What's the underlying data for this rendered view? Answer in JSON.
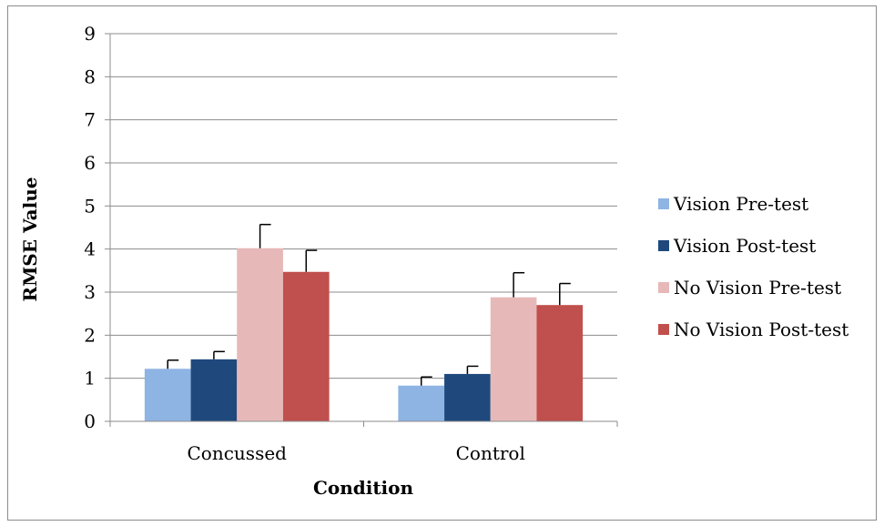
{
  "chart_data": {
    "type": "bar",
    "title": "",
    "xlabel": "Condition",
    "ylabel": "RMSE Value",
    "ylim": [
      0,
      9
    ],
    "yticks": [
      "0",
      "1",
      "2",
      "3",
      "4",
      "5",
      "6",
      "7",
      "8",
      "9"
    ],
    "categories": [
      "Concussed",
      "Control"
    ],
    "grid": true,
    "legend_position": "right",
    "series": [
      {
        "name": "Vision Pre-test",
        "color": "#8eb4e3",
        "values": [
          1.22,
          0.83
        ],
        "errors": [
          0.2,
          0.2
        ]
      },
      {
        "name": "Vision Post-test",
        "color": "#1f497d",
        "values": [
          1.44,
          1.1
        ],
        "errors": [
          0.18,
          0.18
        ]
      },
      {
        "name": "No Vision Pre-test",
        "color": "#e6b9b8",
        "values": [
          4.02,
          2.88
        ],
        "errors": [
          0.55,
          0.57
        ]
      },
      {
        "name": "No Vision Post-test",
        "color": "#c0504d",
        "values": [
          3.47,
          2.7
        ],
        "errors": [
          0.5,
          0.5
        ]
      }
    ]
  }
}
